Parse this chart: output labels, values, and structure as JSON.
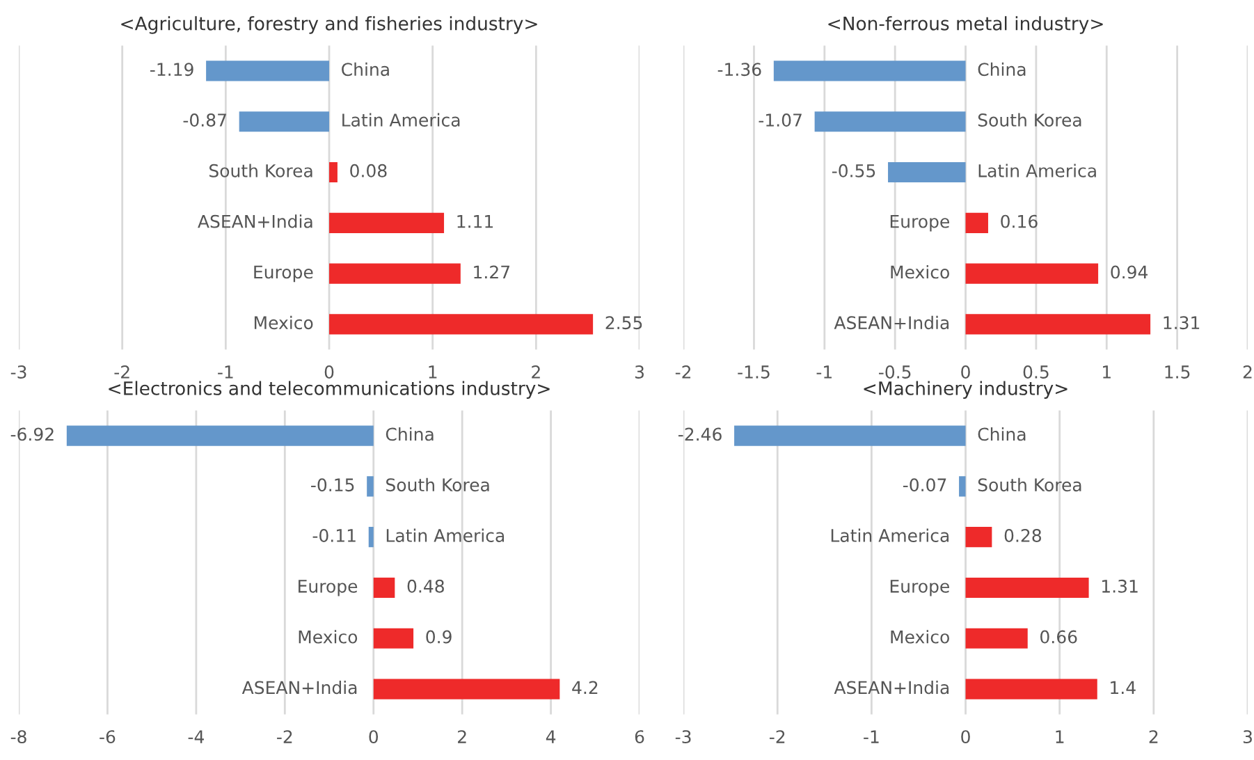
{
  "chart_data": [
    {
      "type": "bar",
      "orientation": "horizontal",
      "title": "<Agriculture, forestry and fisheries industry>",
      "categories": [
        "China",
        "Latin America",
        "South Korea",
        "ASEAN+India",
        "Europe",
        "Mexico"
      ],
      "values": [
        -1.19,
        -0.87,
        0.08,
        1.11,
        1.27,
        2.55
      ],
      "colors": [
        "#6497cb",
        "#6497cb",
        "#ee2a2a",
        "#ee2a2a",
        "#ee2a2a",
        "#ee2a2a"
      ],
      "xlim": [
        -3,
        3
      ],
      "xticks": [
        -3,
        -2,
        -1,
        0,
        1,
        2,
        3
      ],
      "grid": "x",
      "data_labels": true
    },
    {
      "type": "bar",
      "orientation": "horizontal",
      "title": "<Non-ferrous metal industry>",
      "categories": [
        "China",
        "South Korea",
        "Latin America",
        "Europe",
        "Mexico",
        "ASEAN+India"
      ],
      "values": [
        -1.36,
        -1.07,
        -0.55,
        0.16,
        0.94,
        1.31
      ],
      "colors": [
        "#6497cb",
        "#6497cb",
        "#6497cb",
        "#ee2a2a",
        "#ee2a2a",
        "#ee2a2a"
      ],
      "xlim": [
        -2,
        2
      ],
      "xticks": [
        -2,
        -1.5,
        -1,
        -0.5,
        0,
        0.5,
        1,
        1.5,
        2
      ],
      "grid": "x",
      "data_labels": true
    },
    {
      "type": "bar",
      "orientation": "horizontal",
      "title": "<Electronics and telecommunications industry>",
      "categories": [
        "China",
        "South Korea",
        "Latin America",
        "Europe",
        "Mexico",
        "ASEAN+India"
      ],
      "values": [
        -6.92,
        -0.15,
        -0.11,
        0.48,
        0.9,
        4.2
      ],
      "colors": [
        "#6497cb",
        "#6497cb",
        "#6497cb",
        "#ee2a2a",
        "#ee2a2a",
        "#ee2a2a"
      ],
      "xlim": [
        -8,
        6
      ],
      "xticks": [
        -8,
        -6,
        -4,
        -2,
        0,
        2,
        4,
        6
      ],
      "grid": "x",
      "data_labels": true
    },
    {
      "type": "bar",
      "orientation": "horizontal",
      "title": "<Machinery industry>",
      "categories": [
        "China",
        "South Korea",
        "Latin America",
        "Europe",
        "Mexico",
        "ASEAN+India"
      ],
      "values": [
        -2.46,
        -0.07,
        0.28,
        1.31,
        0.66,
        1.4
      ],
      "colors": [
        "#6497cb",
        "#6497cb",
        "#ee2a2a",
        "#ee2a2a",
        "#ee2a2a",
        "#ee2a2a"
      ],
      "xlim": [
        -3,
        3
      ],
      "xticks": [
        -3,
        -2,
        -1,
        0,
        1,
        2,
        3
      ],
      "grid": "x",
      "data_labels": true
    }
  ]
}
